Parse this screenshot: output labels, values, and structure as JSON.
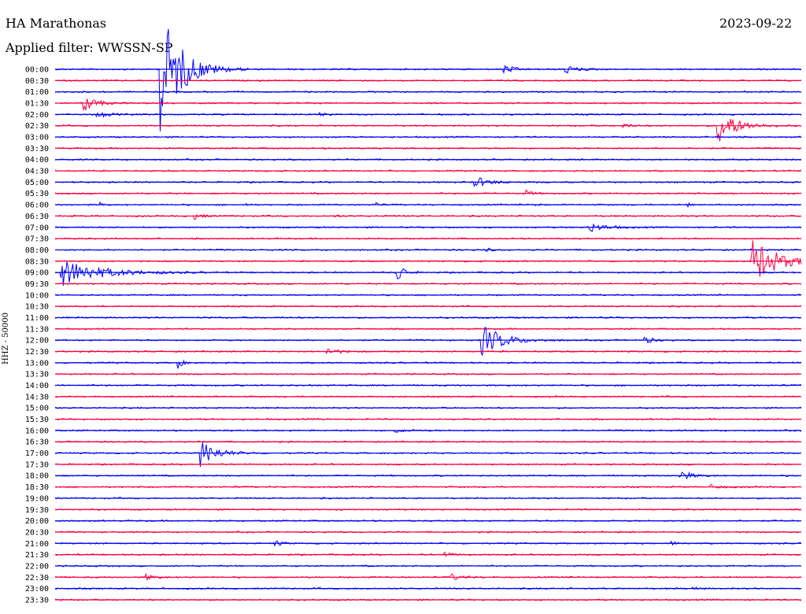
{
  "header": {
    "station": "HA Marathonas",
    "date": "2023-09-22",
    "filter": "Applied filter: WWSSN-SP"
  },
  "side_label": "HHZ - 50000",
  "colors": {
    "blue": "#0000ff",
    "red": "#ff0040"
  },
  "chart_data": {
    "type": "line",
    "title": "HA Marathonas",
    "subtitle": "Applied filter: WWSSN-SP",
    "ylabel": "HHZ - 50000",
    "rows": [
      "00:00",
      "00:30",
      "01:00",
      "01:30",
      "02:00",
      "02:30",
      "03:00",
      "03:30",
      "04:00",
      "04:30",
      "05:00",
      "05:30",
      "06:00",
      "06:30",
      "07:00",
      "07:30",
      "08:00",
      "08:30",
      "09:00",
      "09:30",
      "10:00",
      "10:30",
      "11:00",
      "11:30",
      "12:00",
      "12:30",
      "13:00",
      "13:30",
      "14:00",
      "14:30",
      "15:00",
      "15:30",
      "16:00",
      "16:30",
      "17:00",
      "17:30",
      "18:00",
      "18:30",
      "19:00",
      "19:30",
      "20:00",
      "20:30",
      "21:00",
      "21:30",
      "22:00",
      "22:30",
      "23:00",
      "23:30"
    ],
    "row_colors": [
      "blue",
      "red"
    ],
    "x_range_minutes": [
      0,
      30
    ],
    "events": [
      {
        "row": 0,
        "minute": 4.2,
        "amplitude": 85,
        "duration": 1.2
      },
      {
        "row": 0,
        "minute": 18.0,
        "amplitude": 6,
        "duration": 0.6
      },
      {
        "row": 0,
        "minute": 20.5,
        "amplitude": 6,
        "duration": 0.6
      },
      {
        "row": 3,
        "minute": 1.1,
        "amplitude": 14,
        "duration": 0.6
      },
      {
        "row": 4,
        "minute": 1.6,
        "amplitude": 5,
        "duration": 0.6
      },
      {
        "row": 4,
        "minute": 10.6,
        "amplitude": 4,
        "duration": 0.2
      },
      {
        "row": 5,
        "minute": 26.6,
        "amplitude": 26,
        "duration": 1.0
      },
      {
        "row": 5,
        "minute": 22.8,
        "amplitude": 3,
        "duration": 0.4
      },
      {
        "row": 10,
        "minute": 16.8,
        "amplitude": 8,
        "duration": 0.8
      },
      {
        "row": 11,
        "minute": 18.9,
        "amplitude": 5,
        "duration": 0.3
      },
      {
        "row": 12,
        "minute": 1.8,
        "amplitude": 3,
        "duration": 0.1
      },
      {
        "row": 12,
        "minute": 7.6,
        "amplitude": 3,
        "duration": 0.1
      },
      {
        "row": 12,
        "minute": 12.9,
        "amplitude": 4,
        "duration": 0.1
      },
      {
        "row": 12,
        "minute": 19.3,
        "amplitude": 3,
        "duration": 0.1
      },
      {
        "row": 12,
        "minute": 25.4,
        "amplitude": 4,
        "duration": 0.1
      },
      {
        "row": 13,
        "minute": 5.6,
        "amplitude": 4,
        "duration": 0.4
      },
      {
        "row": 13,
        "minute": 11.2,
        "amplitude": 3,
        "duration": 0.2
      },
      {
        "row": 14,
        "minute": 21.4,
        "amplitude": 6,
        "duration": 1.0
      },
      {
        "row": 16,
        "minute": 17.3,
        "amplitude": 3,
        "duration": 0.2
      },
      {
        "row": 17,
        "minute": 28.0,
        "amplitude": 32,
        "duration": 1.4
      },
      {
        "row": 18,
        "minute": 0.2,
        "amplitude": 18,
        "duration": 2.2
      },
      {
        "row": 18,
        "minute": 13.7,
        "amplitude": 20,
        "duration": 0.3
      },
      {
        "row": 24,
        "minute": 17.1,
        "amplitude": 22,
        "duration": 1.2
      },
      {
        "row": 24,
        "minute": 23.6,
        "amplitude": 6,
        "duration": 0.5
      },
      {
        "row": 25,
        "minute": 10.9,
        "amplitude": 5,
        "duration": 0.6
      },
      {
        "row": 26,
        "minute": 4.9,
        "amplitude": 9,
        "duration": 0.2
      },
      {
        "row": 32,
        "minute": 13.6,
        "amplitude": 3,
        "duration": 0.6
      },
      {
        "row": 34,
        "minute": 5.8,
        "amplitude": 18,
        "duration": 0.9
      },
      {
        "row": 36,
        "minute": 25.1,
        "amplitude": 7,
        "duration": 0.6
      },
      {
        "row": 37,
        "minute": 26.3,
        "amplitude": 3,
        "duration": 0.6
      },
      {
        "row": 42,
        "minute": 8.8,
        "amplitude": 5,
        "duration": 0.3
      },
      {
        "row": 42,
        "minute": 24.7,
        "amplitude": 3,
        "duration": 0.4
      },
      {
        "row": 43,
        "minute": 15.5,
        "amplitude": 4,
        "duration": 0.5
      },
      {
        "row": 45,
        "minute": 3.6,
        "amplitude": 4,
        "duration": 0.5
      },
      {
        "row": 45,
        "minute": 15.9,
        "amplitude": 4,
        "duration": 0.6
      },
      {
        "row": 46,
        "minute": 25.6,
        "amplitude": 3,
        "duration": 0.2
      }
    ]
  }
}
